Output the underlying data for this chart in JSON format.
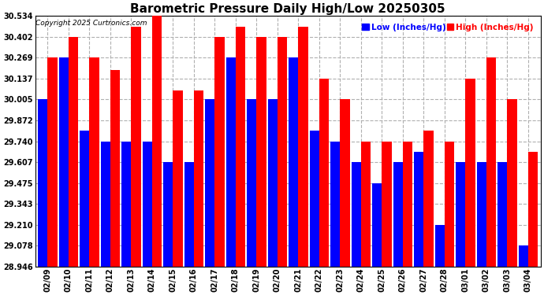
{
  "title": "Barometric Pressure Daily High/Low 20250305",
  "copyright": "Copyright 2025 Curtronics.com",
  "legend_low": "Low (Inches/Hg)",
  "legend_high": "High (Inches/Hg)",
  "dates": [
    "02/09",
    "02/10",
    "02/11",
    "02/12",
    "02/13",
    "02/14",
    "02/15",
    "02/16",
    "02/17",
    "02/18",
    "02/19",
    "02/20",
    "02/21",
    "02/22",
    "02/23",
    "02/24",
    "02/25",
    "02/26",
    "02/27",
    "02/28",
    "03/01",
    "03/02",
    "03/03",
    "03/04"
  ],
  "high_values": [
    30.269,
    30.402,
    30.269,
    30.192,
    30.468,
    30.534,
    30.06,
    30.06,
    30.402,
    30.468,
    30.402,
    30.402,
    30.468,
    30.137,
    30.005,
    29.74,
    29.74,
    29.74,
    29.807,
    29.74,
    30.137,
    30.269,
    30.005,
    29.674
  ],
  "low_values": [
    30.005,
    30.269,
    29.807,
    29.74,
    29.74,
    29.74,
    29.607,
    29.607,
    30.005,
    30.269,
    30.005,
    30.005,
    30.269,
    29.807,
    29.74,
    29.607,
    29.475,
    29.607,
    29.674,
    29.21,
    29.607,
    29.607,
    29.607,
    29.078
  ],
  "high_color": "#ff0000",
  "low_color": "#0000ff",
  "background_color": "#ffffff",
  "grid_color": "#b0b0b0",
  "yticks": [
    28.946,
    29.078,
    29.21,
    29.343,
    29.475,
    29.607,
    29.74,
    29.872,
    30.005,
    30.137,
    30.269,
    30.402,
    30.534
  ],
  "ymin": 28.946,
  "ymax": 30.534,
  "title_fontsize": 11,
  "tick_fontsize": 7,
  "bar_width": 0.46
}
